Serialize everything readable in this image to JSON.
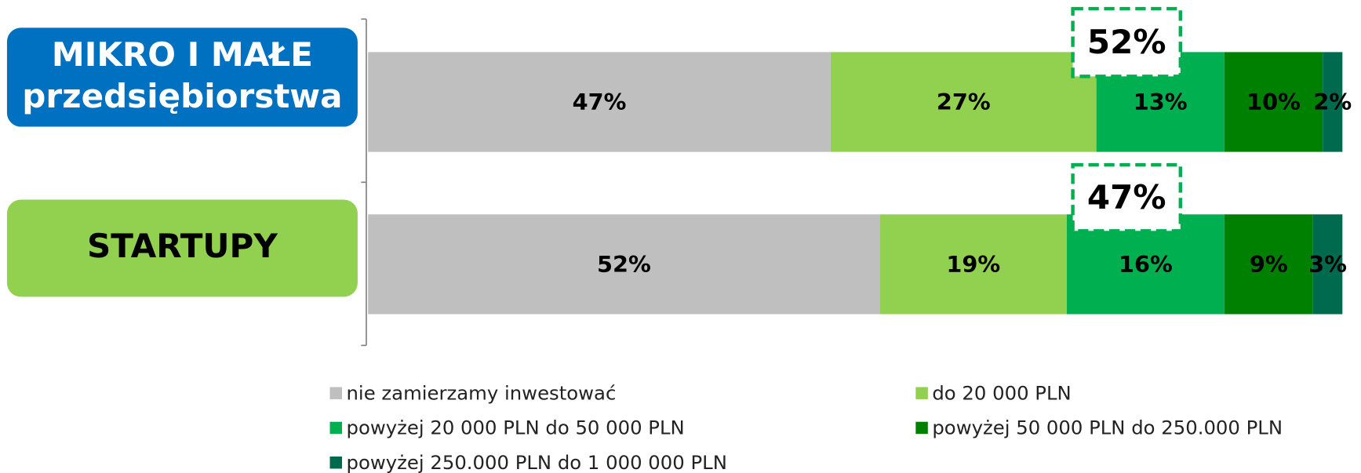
{
  "chart_data": {
    "type": "stacked_barh",
    "categories": [
      "MIKRO I MAŁE\nprzedsiębiorstwa",
      "STARTUPY"
    ],
    "category_colors": [
      "#0070c0",
      "#92d050"
    ],
    "series": [
      {
        "name": "nie zamierzamy inwestować",
        "color": "#bfbfbf",
        "values": [
          47,
          52
        ],
        "value_labels": [
          "47%",
          "52%"
        ]
      },
      {
        "name": "do 20 000 PLN",
        "color": "#92d050",
        "values": [
          27,
          19
        ],
        "value_labels": [
          "27%",
          "19%"
        ]
      },
      {
        "name": "powyżej 20 000 PLN do 50 000 PLN",
        "color": "#00b050",
        "values": [
          13,
          16
        ],
        "value_labels": [
          "13%",
          "16%"
        ]
      },
      {
        "name": "powyżej 50 000 PLN do 250.000 PLN",
        "color": "#008000",
        "values": [
          10,
          9
        ],
        "value_labels": [
          "10%",
          "9%"
        ]
      },
      {
        "name": "powyżej 250.000 PLN do 1 000 000 PLN",
        "color": "#006a4e",
        "values": [
          2,
          3
        ],
        "value_labels": [
          "2%",
          "3%"
        ]
      }
    ],
    "annotations": [
      "52%",
      "47%"
    ],
    "xlim": [
      0,
      100
    ]
  }
}
